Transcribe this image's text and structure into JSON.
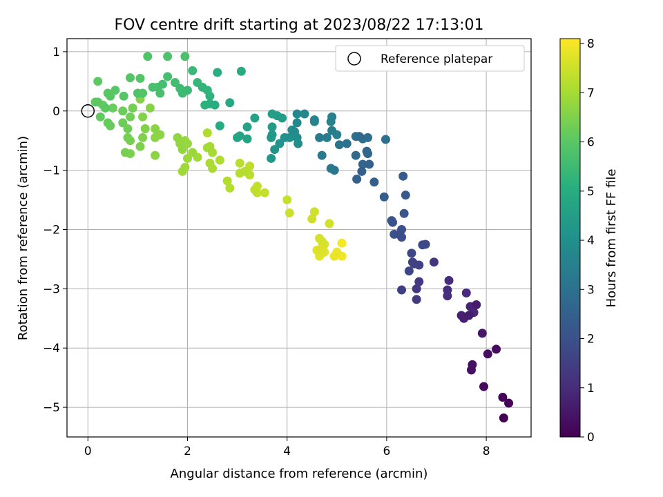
{
  "chart_data": {
    "type": "scatter",
    "title": "FOV centre drift starting at 2023/08/22 17:13:01",
    "xlabel": "Angular distance from reference (arcmin)",
    "ylabel": "Rotation from reference (arcmin)",
    "xlim": [
      -0.42,
      8.9
    ],
    "ylim": [
      -5.5,
      1.22
    ],
    "xticks": [
      0,
      2,
      4,
      6,
      8
    ],
    "yticks": [
      1,
      0,
      -1,
      -2,
      -3,
      -4,
      -5
    ],
    "xtick_labels": [
      "0",
      "2",
      "4",
      "6",
      "8"
    ],
    "ytick_labels": [
      "1",
      "0",
      "−1",
      "−2",
      "−3",
      "−4",
      "−5"
    ],
    "grid": true,
    "legend": {
      "placement": "top-right",
      "entries": [
        "Reference platepar"
      ]
    },
    "reference_point": {
      "name": "Reference platepar",
      "x": 0,
      "y": 0
    },
    "colorbar": {
      "label": "Hours from first FF file",
      "range": [
        0,
        8.1
      ],
      "ticks": [
        0,
        1,
        2,
        3,
        4,
        5,
        6,
        7,
        8
      ],
      "tick_labels": [
        "0",
        "1",
        "2",
        "3",
        "4",
        "5",
        "6",
        "7",
        "8"
      ],
      "colormap": "viridis"
    },
    "series": [
      {
        "color_scale_value_from": "h",
        "points": [
          {
            "x": 8.35,
            "y": -5.18,
            "h": 0.0
          },
          {
            "x": 8.45,
            "y": -4.93,
            "h": 0.05
          },
          {
            "x": 8.33,
            "y": -4.83,
            "h": 0.1
          },
          {
            "x": 7.95,
            "y": -4.65,
            "h": 0.2
          },
          {
            "x": 8.2,
            "y": -4.02,
            "h": 0.25
          },
          {
            "x": 8.03,
            "y": -4.1,
            "h": 0.3
          },
          {
            "x": 7.7,
            "y": -4.37,
            "h": 0.35
          },
          {
            "x": 7.72,
            "y": -4.28,
            "h": 0.4
          },
          {
            "x": 7.92,
            "y": -3.75,
            "h": 0.5
          },
          {
            "x": 7.8,
            "y": -3.27,
            "h": 0.6
          },
          {
            "x": 7.65,
            "y": -3.45,
            "h": 0.65
          },
          {
            "x": 7.55,
            "y": -3.5,
            "h": 0.7
          },
          {
            "x": 7.5,
            "y": -3.45,
            "h": 0.75
          },
          {
            "x": 7.68,
            "y": -3.3,
            "h": 0.8
          },
          {
            "x": 7.75,
            "y": -3.4,
            "h": 0.85
          },
          {
            "x": 7.6,
            "y": -3.07,
            "h": 0.95
          },
          {
            "x": 7.25,
            "y": -2.86,
            "h": 1.0
          },
          {
            "x": 7.22,
            "y": -3.02,
            "h": 1.05
          },
          {
            "x": 7.22,
            "y": -3.12,
            "h": 1.1
          },
          {
            "x": 6.95,
            "y": -2.55,
            "h": 1.2
          },
          {
            "x": 6.65,
            "y": -2.88,
            "h": 1.3
          },
          {
            "x": 6.6,
            "y": -3.0,
            "h": 1.35
          },
          {
            "x": 6.6,
            "y": -3.18,
            "h": 1.4
          },
          {
            "x": 6.3,
            "y": -3.02,
            "h": 1.5
          },
          {
            "x": 6.65,
            "y": -2.6,
            "h": 1.55
          },
          {
            "x": 6.52,
            "y": -2.55,
            "h": 1.6
          },
          {
            "x": 6.55,
            "y": -2.58,
            "h": 1.65
          },
          {
            "x": 6.45,
            "y": -2.7,
            "h": 1.7
          },
          {
            "x": 6.5,
            "y": -2.4,
            "h": 1.75
          },
          {
            "x": 6.78,
            "y": -2.25,
            "h": 1.8
          },
          {
            "x": 6.72,
            "y": -2.26,
            "h": 1.85
          },
          {
            "x": 6.3,
            "y": -2.13,
            "h": 1.9
          },
          {
            "x": 6.25,
            "y": -2.08,
            "h": 1.95
          },
          {
            "x": 6.3,
            "y": -2.0,
            "h": 2.0
          },
          {
            "x": 6.15,
            "y": -2.08,
            "h": 2.05
          },
          {
            "x": 6.12,
            "y": -1.88,
            "h": 2.1
          },
          {
            "x": 6.1,
            "y": -1.85,
            "h": 2.15
          },
          {
            "x": 6.35,
            "y": -1.73,
            "h": 2.2
          },
          {
            "x": 6.38,
            "y": -1.42,
            "h": 2.25
          },
          {
            "x": 6.33,
            "y": -1.1,
            "h": 2.3
          },
          {
            "x": 5.95,
            "y": -1.45,
            "h": 2.35
          },
          {
            "x": 5.75,
            "y": -1.2,
            "h": 2.4
          },
          {
            "x": 5.4,
            "y": -1.15,
            "h": 2.45
          },
          {
            "x": 5.5,
            "y": -1.02,
            "h": 2.5
          },
          {
            "x": 5.65,
            "y": -0.9,
            "h": 2.55
          },
          {
            "x": 5.52,
            "y": -0.9,
            "h": 2.6
          },
          {
            "x": 5.62,
            "y": -0.72,
            "h": 2.65
          },
          {
            "x": 5.6,
            "y": -0.68,
            "h": 2.7
          },
          {
            "x": 5.38,
            "y": -0.75,
            "h": 2.75
          },
          {
            "x": 5.45,
            "y": -0.43,
            "h": 2.8
          },
          {
            "x": 5.62,
            "y": -0.45,
            "h": 2.85
          },
          {
            "x": 5.52,
            "y": -0.47,
            "h": 2.9
          },
          {
            "x": 5.98,
            "y": -0.48,
            "h": 2.95
          },
          {
            "x": 5.38,
            "y": -0.43,
            "h": 3.0
          },
          {
            "x": 5.2,
            "y": -0.55,
            "h": 3.05
          },
          {
            "x": 5.05,
            "y": -0.57,
            "h": 3.1
          },
          {
            "x": 4.95,
            "y": -1.0,
            "h": 3.15
          },
          {
            "x": 4.88,
            "y": -0.97,
            "h": 3.2
          },
          {
            "x": 4.7,
            "y": -0.75,
            "h": 3.25
          },
          {
            "x": 4.65,
            "y": -0.45,
            "h": 3.3
          },
          {
            "x": 4.8,
            "y": -0.45,
            "h": 3.35
          },
          {
            "x": 4.9,
            "y": -0.33,
            "h": 3.4
          },
          {
            "x": 5.0,
            "y": -0.4,
            "h": 3.45
          },
          {
            "x": 4.9,
            "y": -0.1,
            "h": 3.5
          },
          {
            "x": 4.88,
            "y": -0.18,
            "h": 3.55
          },
          {
            "x": 4.55,
            "y": -0.15,
            "h": 3.6
          },
          {
            "x": 4.55,
            "y": -0.18,
            "h": 3.65
          },
          {
            "x": 4.35,
            "y": -0.05,
            "h": 3.7
          },
          {
            "x": 4.2,
            "y": -0.05,
            "h": 3.75
          },
          {
            "x": 4.2,
            "y": -0.2,
            "h": 3.8
          },
          {
            "x": 4.15,
            "y": -0.35,
            "h": 3.85
          },
          {
            "x": 4.1,
            "y": -0.32,
            "h": 3.9
          },
          {
            "x": 4.2,
            "y": -0.45,
            "h": 3.95
          },
          {
            "x": 4.22,
            "y": -0.55,
            "h": 4.0
          },
          {
            "x": 4.05,
            "y": -0.45,
            "h": 4.05
          },
          {
            "x": 3.95,
            "y": -0.45,
            "h": 4.1
          },
          {
            "x": 3.85,
            "y": -0.55,
            "h": 4.15
          },
          {
            "x": 3.75,
            "y": -0.65,
            "h": 4.2
          },
          {
            "x": 3.68,
            "y": -0.8,
            "h": 4.25
          },
          {
            "x": 3.68,
            "y": -0.45,
            "h": 4.3
          },
          {
            "x": 3.7,
            "y": -0.4,
            "h": 4.35
          },
          {
            "x": 3.7,
            "y": -0.27,
            "h": 4.4
          },
          {
            "x": 3.9,
            "y": -0.12,
            "h": 4.45
          },
          {
            "x": 3.8,
            "y": -0.08,
            "h": 4.5
          },
          {
            "x": 3.7,
            "y": -0.05,
            "h": 4.55
          },
          {
            "x": 3.35,
            "y": -0.12,
            "h": 4.6
          },
          {
            "x": 3.2,
            "y": -0.27,
            "h": 4.65
          },
          {
            "x": 3.2,
            "y": -0.47,
            "h": 4.7
          },
          {
            "x": 3.05,
            "y": -0.42,
            "h": 4.75
          },
          {
            "x": 3.0,
            "y": -0.45,
            "h": 4.8
          },
          {
            "x": 2.85,
            "y": 0.14,
            "h": 4.85
          },
          {
            "x": 3.08,
            "y": 0.67,
            "h": 4.9
          },
          {
            "x": 2.65,
            "y": -0.25,
            "h": 4.95
          },
          {
            "x": 2.55,
            "y": 0.1,
            "h": 5.0
          },
          {
            "x": 2.6,
            "y": 0.65,
            "h": 5.05
          },
          {
            "x": 2.45,
            "y": 0.12,
            "h": 5.1
          },
          {
            "x": 2.35,
            "y": 0.1,
            "h": 5.15
          },
          {
            "x": 2.45,
            "y": 0.25,
            "h": 5.2
          },
          {
            "x": 2.4,
            "y": 0.35,
            "h": 5.25
          },
          {
            "x": 2.3,
            "y": 0.4,
            "h": 5.3
          },
          {
            "x": 2.2,
            "y": 0.48,
            "h": 5.35
          },
          {
            "x": 2.1,
            "y": 0.68,
            "h": 5.4
          },
          {
            "x": 2.0,
            "y": 0.35,
            "h": 5.45
          },
          {
            "x": 1.9,
            "y": 0.3,
            "h": 5.5
          },
          {
            "x": 1.85,
            "y": 0.38,
            "h": 5.55
          },
          {
            "x": 1.75,
            "y": 0.48,
            "h": 5.6
          },
          {
            "x": 1.6,
            "y": 0.58,
            "h": 5.62
          },
          {
            "x": 1.5,
            "y": 0.45,
            "h": 5.65
          },
          {
            "x": 1.45,
            "y": 0.3,
            "h": 5.68
          },
          {
            "x": 1.4,
            "y": 0.4,
            "h": 5.7
          },
          {
            "x": 1.3,
            "y": 0.4,
            "h": 5.72
          },
          {
            "x": 1.95,
            "y": 0.92,
            "h": 5.75
          },
          {
            "x": 1.6,
            "y": 0.92,
            "h": 5.78
          },
          {
            "x": 1.2,
            "y": 0.92,
            "h": 5.8
          },
          {
            "x": 1.0,
            "y": 0.3,
            "h": 5.82
          },
          {
            "x": 1.1,
            "y": 0.3,
            "h": 5.85
          },
          {
            "x": 1.05,
            "y": 0.55,
            "h": 5.87
          },
          {
            "x": 0.85,
            "y": 0.56,
            "h": 5.9
          },
          {
            "x": 0.72,
            "y": 0.25,
            "h": 5.92
          },
          {
            "x": 0.55,
            "y": 0.35,
            "h": 5.95
          },
          {
            "x": 0.45,
            "y": 0.25,
            "h": 5.97
          },
          {
            "x": 0.4,
            "y": 0.3,
            "h": 6.0
          },
          {
            "x": 0.35,
            "y": 0.05,
            "h": 6.02
          },
          {
            "x": 0.2,
            "y": 0.15,
            "h": 6.05
          },
          {
            "x": 0.2,
            "y": 0.5,
            "h": 6.07
          },
          {
            "x": 0.15,
            "y": 0.15,
            "h": 6.1
          },
          {
            "x": 0.25,
            "y": -0.1,
            "h": 6.12
          },
          {
            "x": 0.3,
            "y": 0.1,
            "h": 6.15
          },
          {
            "x": 0.4,
            "y": -0.2,
            "h": 6.17
          },
          {
            "x": 0.45,
            "y": -0.25,
            "h": 6.2
          },
          {
            "x": 0.5,
            "y": 0.05,
            "h": 6.22
          },
          {
            "x": 0.7,
            "y": 0.0,
            "h": 6.25
          },
          {
            "x": 0.7,
            "y": -0.2,
            "h": 6.27
          },
          {
            "x": 0.8,
            "y": -0.3,
            "h": 6.3
          },
          {
            "x": 0.85,
            "y": -0.1,
            "h": 6.32
          },
          {
            "x": 0.9,
            "y": 0.05,
            "h": 6.35
          },
          {
            "x": 0.8,
            "y": -0.45,
            "h": 6.37
          },
          {
            "x": 0.85,
            "y": -0.5,
            "h": 6.4
          },
          {
            "x": 0.75,
            "y": -0.7,
            "h": 6.42
          },
          {
            "x": 0.85,
            "y": -0.72,
            "h": 6.45
          },
          {
            "x": 1.05,
            "y": -0.6,
            "h": 6.47
          },
          {
            "x": 1.1,
            "y": -0.45,
            "h": 6.5
          },
          {
            "x": 1.15,
            "y": -0.3,
            "h": 6.52
          },
          {
            "x": 1.1,
            "y": -0.1,
            "h": 6.55
          },
          {
            "x": 1.05,
            "y": 0.2,
            "h": 6.57
          },
          {
            "x": 1.25,
            "y": 0.05,
            "h": 6.6
          },
          {
            "x": 1.35,
            "y": -0.3,
            "h": 6.62
          },
          {
            "x": 1.35,
            "y": -0.45,
            "h": 6.65
          },
          {
            "x": 1.35,
            "y": -0.75,
            "h": 6.67
          },
          {
            "x": 1.45,
            "y": -0.4,
            "h": 6.7
          },
          {
            "x": 1.8,
            "y": -0.45,
            "h": 6.72
          },
          {
            "x": 1.85,
            "y": -0.55,
            "h": 6.75
          },
          {
            "x": 1.9,
            "y": -0.65,
            "h": 6.77
          },
          {
            "x": 1.95,
            "y": -0.5,
            "h": 6.8
          },
          {
            "x": 2.0,
            "y": -0.55,
            "h": 6.82
          },
          {
            "x": 2.1,
            "y": -0.7,
            "h": 6.85
          },
          {
            "x": 2.0,
            "y": -0.8,
            "h": 6.87
          },
          {
            "x": 1.95,
            "y": -0.95,
            "h": 6.9
          },
          {
            "x": 1.9,
            "y": -1.02,
            "h": 6.92
          },
          {
            "x": 2.2,
            "y": -0.78,
            "h": 6.95
          },
          {
            "x": 2.4,
            "y": -0.62,
            "h": 6.97
          },
          {
            "x": 2.45,
            "y": -0.6,
            "h": 7.0
          },
          {
            "x": 2.5,
            "y": -0.7,
            "h": 7.02
          },
          {
            "x": 2.45,
            "y": -0.88,
            "h": 7.05
          },
          {
            "x": 2.5,
            "y": -0.97,
            "h": 7.07
          },
          {
            "x": 2.4,
            "y": -0.37,
            "h": 7.1
          },
          {
            "x": 2.65,
            "y": -0.83,
            "h": 7.12
          },
          {
            "x": 2.8,
            "y": -1.18,
            "h": 7.15
          },
          {
            "x": 2.85,
            "y": -1.3,
            "h": 7.17
          },
          {
            "x": 3.05,
            "y": -1.05,
            "h": 7.2
          },
          {
            "x": 3.15,
            "y": -1.02,
            "h": 7.22
          },
          {
            "x": 3.25,
            "y": -1.08,
            "h": 7.25
          },
          {
            "x": 3.05,
            "y": -0.88,
            "h": 7.27
          },
          {
            "x": 3.25,
            "y": -0.93,
            "h": 7.3
          },
          {
            "x": 3.35,
            "y": -1.33,
            "h": 7.32
          },
          {
            "x": 3.4,
            "y": -1.38,
            "h": 7.35
          },
          {
            "x": 3.4,
            "y": -1.27,
            "h": 7.37
          },
          {
            "x": 3.55,
            "y": -1.38,
            "h": 7.4
          },
          {
            "x": 4.0,
            "y": -1.5,
            "h": 7.42
          },
          {
            "x": 4.05,
            "y": -1.72,
            "h": 7.45
          },
          {
            "x": 4.5,
            "y": -1.82,
            "h": 7.5
          },
          {
            "x": 4.55,
            "y": -1.7,
            "h": 7.52
          },
          {
            "x": 4.85,
            "y": -1.9,
            "h": 7.55
          },
          {
            "x": 4.65,
            "y": -2.15,
            "h": 7.6
          },
          {
            "x": 4.7,
            "y": -2.2,
            "h": 7.62
          },
          {
            "x": 4.75,
            "y": -2.25,
            "h": 7.65
          },
          {
            "x": 4.7,
            "y": -2.3,
            "h": 7.68
          },
          {
            "x": 4.65,
            "y": -2.35,
            "h": 7.7
          },
          {
            "x": 4.7,
            "y": -2.4,
            "h": 7.72
          },
          {
            "x": 4.6,
            "y": -2.35,
            "h": 7.75
          },
          {
            "x": 4.65,
            "y": -2.45,
            "h": 7.78
          },
          {
            "x": 4.75,
            "y": -2.38,
            "h": 7.8
          },
          {
            "x": 4.95,
            "y": -2.45,
            "h": 7.85
          },
          {
            "x": 5.0,
            "y": -2.38,
            "h": 7.9
          },
          {
            "x": 5.1,
            "y": -2.45,
            "h": 7.95
          },
          {
            "x": 5.1,
            "y": -2.23,
            "h": 8.0
          }
        ]
      }
    ]
  }
}
